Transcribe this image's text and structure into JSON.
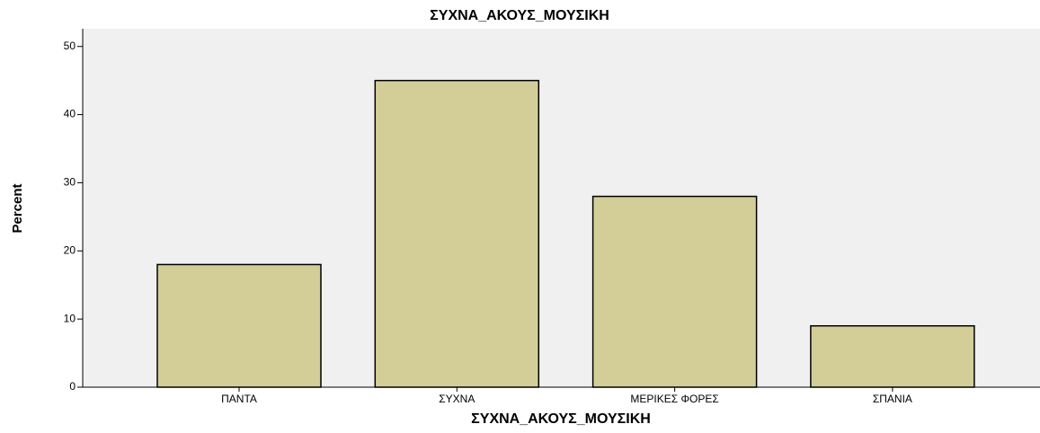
{
  "chart_data": {
    "type": "bar",
    "title": "ΣΥΧΝΑ_ΑΚΟΥΣ_ΜΟΥΣΙΚΗ",
    "x_label": "ΣΥΧΝΑ_ΑΚΟΥΣ_ΜΟΥΣΙΚΗ",
    "y_label": "Percent",
    "categories": [
      "ΠΑΝΤΑ",
      "ΣΥΧΝΑ",
      "ΜΕΡΙΚΕΣ ΦΟΡΕΣ",
      "ΣΠΑΝΙΑ"
    ],
    "values": [
      18,
      45,
      28,
      9
    ],
    "color": "#d3ce98",
    "ylim": [
      0,
      52.6
    ],
    "yticks": [
      0,
      10,
      20,
      30,
      40,
      50
    ],
    "grid": false
  }
}
